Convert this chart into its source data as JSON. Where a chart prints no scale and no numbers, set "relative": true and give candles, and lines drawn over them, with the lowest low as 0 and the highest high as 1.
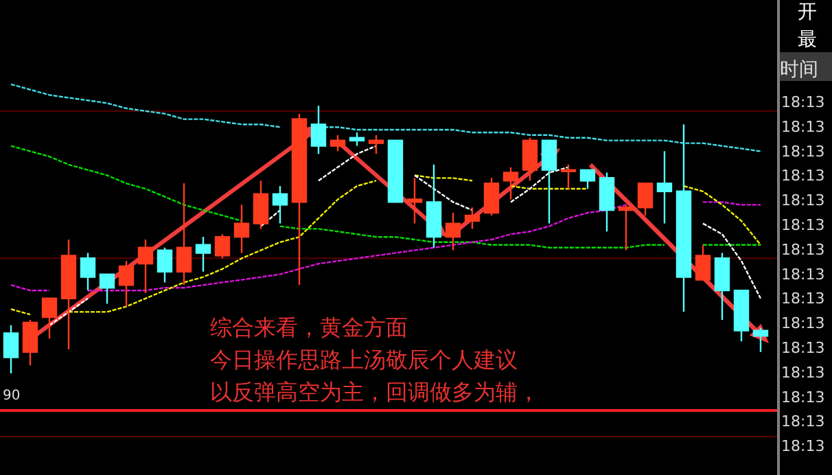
{
  "chart_data": {
    "type": "candlestick",
    "relative": true,
    "categories": [
      null,
      null,
      null,
      null,
      null,
      null,
      null,
      null,
      null,
      null,
      null,
      null,
      null,
      null,
      null,
      null,
      null,
      null,
      null,
      null,
      null,
      null,
      null,
      null,
      null,
      null,
      null,
      null,
      null,
      null,
      null,
      null,
      null,
      null,
      null,
      null,
      null,
      null,
      null,
      null
    ],
    "ohlc": [
      [
        0.15,
        0.18,
        0,
        0.06
      ],
      [
        0.08,
        0.2,
        0.03,
        0.19
      ],
      [
        0.21,
        0.28,
        0.13,
        0.28
      ],
      [
        0.28,
        0.5,
        0.09,
        0.44
      ],
      [
        0.43,
        0.45,
        0.31,
        0.36
      ],
      [
        0.37,
        0.37,
        0.26,
        0.32
      ],
      [
        0.33,
        0.42,
        0.25,
        0.4
      ],
      [
        0.41,
        0.5,
        0.3,
        0.47
      ],
      [
        0.46,
        0.47,
        0.34,
        0.38
      ],
      [
        0.38,
        0.71,
        0.33,
        0.47
      ],
      [
        0.48,
        0.51,
        0.38,
        0.45
      ],
      [
        0.44,
        0.52,
        0.43,
        0.51
      ],
      [
        0.51,
        0.63,
        0.45,
        0.56
      ],
      [
        0.56,
        0.72,
        0.54,
        0.67
      ],
      [
        0.67,
        0.7,
        0.56,
        0.63
      ],
      [
        0.64,
        0.97,
        0.33,
        0.95
      ],
      [
        0.93,
        1,
        0.82,
        0.85
      ],
      [
        0.85,
        0.89,
        0.83,
        0.87
      ],
      [
        0.88,
        0.9,
        0.85,
        0.87
      ],
      [
        0.86,
        0.89,
        0.82,
        0.87
      ],
      [
        0.87,
        0.87,
        0.64,
        0.64
      ],
      [
        0.64,
        0.73,
        0.56,
        0.65
      ],
      [
        0.64,
        0.78,
        0.47,
        0.51
      ],
      [
        0.51,
        0.6,
        0.46,
        0.56
      ],
      [
        0.57,
        0.62,
        0.54,
        0.59
      ],
      [
        0.6,
        0.73,
        0.59,
        0.71
      ],
      [
        0.72,
        0.77,
        0.65,
        0.75
      ],
      [
        0.76,
        0.88,
        0.72,
        0.87
      ],
      [
        0.87,
        0.87,
        0.56,
        0.76
      ],
      [
        0.76,
        0.78,
        0.69,
        0.76
      ],
      [
        0.76,
        0.76,
        0.69,
        0.72
      ],
      [
        0.73,
        0.75,
        0.53,
        0.61
      ],
      [
        0.61,
        0.63,
        0.46,
        0.62
      ],
      [
        0.62,
        0.71,
        0.59,
        0.71
      ],
      [
        0.71,
        0.83,
        0.56,
        0.68
      ],
      [
        0.68,
        0.93,
        0.23,
        0.36
      ],
      [
        0.35,
        0.48,
        0.35,
        0.44
      ],
      [
        0.43,
        0.45,
        0.2,
        0.31
      ],
      [
        0.31,
        0.31,
        0.12,
        0.16
      ],
      [
        0.16,
        0.17,
        0.08,
        0.14
      ]
    ],
    "series": [
      {
        "type": "line",
        "color": "#3fe0e8",
        "line_style": "dashed",
        "values": [
          1.08,
          1.06,
          1.04,
          1.03,
          1.02,
          1.01,
          0.99,
          0.98,
          0.97,
          0.95,
          0.95,
          0.94,
          0.93,
          0.93,
          0.92,
          null,
          0.92,
          0.92,
          0.91,
          0.91,
          0.91,
          0.91,
          0.91,
          0.91,
          0.9,
          0.9,
          0.9,
          0.89,
          0.89,
          0.88,
          0.88,
          0.87,
          0.87,
          0.87,
          0.87,
          0.86,
          0.86,
          0.85,
          0.84,
          0.83
        ]
      },
      {
        "type": "line",
        "color": "#00e000",
        "line_style": "dashed",
        "values": [
          0.85,
          0.83,
          0.81,
          0.78,
          0.76,
          0.74,
          0.71,
          0.69,
          0.66,
          0.63,
          0.61,
          0.59,
          0.57,
          null,
          0.55,
          0.54,
          0.54,
          0.53,
          0.52,
          0.51,
          0.51,
          0.5,
          0.49,
          0.49,
          0.49,
          0.48,
          0.48,
          0.48,
          0.47,
          0.47,
          0.47,
          0.47,
          0.47,
          0.48,
          0.48,
          null,
          0.48,
          0.48,
          0.48,
          0.48
        ]
      },
      {
        "type": "line",
        "color": "#e010e0",
        "line_style": "dashed",
        "values": [
          0.33,
          0.31,
          0.31,
          null,
          0.31,
          0.31,
          0.31,
          0.31,
          0.32,
          0.32,
          0.33,
          0.34,
          0.35,
          0.36,
          0.37,
          0.39,
          0.41,
          0.42,
          0.43,
          0.44,
          0.45,
          0.46,
          0.47,
          0.48,
          0.49,
          0.5,
          0.52,
          0.53,
          0.55,
          0.58,
          0.6,
          0.61,
          0.63,
          null,
          null,
          null,
          0.64,
          0.64,
          0.63,
          0.63
        ]
      },
      {
        "type": "line",
        "color": "#f0f000",
        "line_style": "dashed",
        "values": [
          0.24,
          0.22,
          null,
          0.23,
          0.23,
          0.23,
          0.25,
          0.28,
          0.31,
          0.34,
          0.36,
          0.39,
          0.43,
          0.46,
          0.49,
          0.51,
          0.58,
          0.65,
          0.7,
          0.72,
          null,
          0.74,
          0.73,
          0.73,
          0.72,
          null,
          0.7,
          0.69,
          0.69,
          0.69,
          0.69,
          null,
          null,
          null,
          null,
          0.7,
          0.68,
          0.63,
          0.57,
          0.48
        ]
      },
      {
        "type": "line",
        "color": "#ffffff",
        "line_style": "dashed",
        "values": [
          null,
          null,
          0.18,
          0.23,
          0.28,
          null,
          null,
          null,
          null,
          null,
          null,
          null,
          null,
          0.55,
          0.61,
          null,
          0.72,
          0.77,
          0.82,
          0.85,
          null,
          0.74,
          0.69,
          0.64,
          0.61,
          null,
          0.64,
          0.69,
          0.75,
          0.77,
          null,
          null,
          null,
          null,
          null,
          null,
          0.56,
          0.52,
          0.42,
          0.28
        ]
      }
    ],
    "ref_lines": [
      {
        "axis": "y",
        "value": 0.98,
        "color": "#5a0000"
      },
      {
        "axis": "y",
        "value": 0.43,
        "color": "#5a0000"
      }
    ],
    "annotations": [
      "综合来看，黄金方面",
      "今日操作思路上汤敬辰个人建议",
      "以反弹高空为主，回调做多为辅，",
      "90",
      "开",
      "最",
      "时间",
      "18:13",
      "18:13",
      "18:13",
      "18:13",
      "18:13",
      "18:13",
      "18:13",
      "18:13",
      "18:13",
      "18:13",
      "18:13",
      "18:13",
      "18:13",
      "18:13",
      "18:13"
    ]
  }
}
